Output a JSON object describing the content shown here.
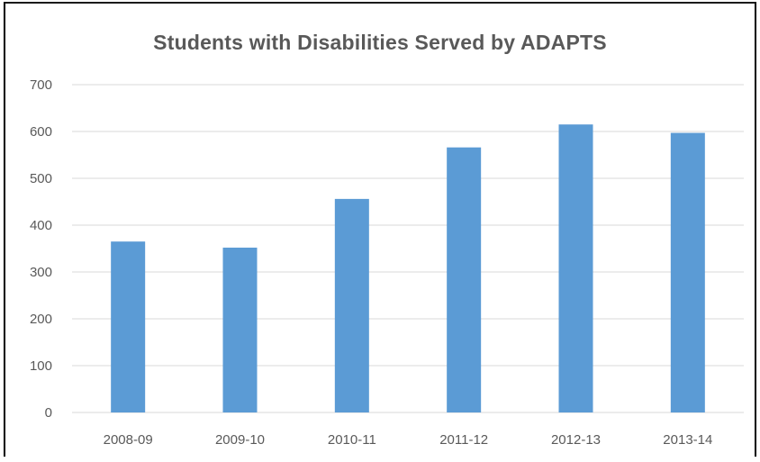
{
  "chart_data": {
    "type": "bar",
    "title": "Students with Disabilities Served by ADAPTS",
    "categories": [
      "2008-09",
      "2009-10",
      "2010-11",
      "2011-12",
      "2012-13",
      "2013-14"
    ],
    "values": [
      365,
      352,
      456,
      566,
      615,
      597
    ],
    "xlabel": "",
    "ylabel": "",
    "ylim": [
      0,
      700
    ],
    "yticks": [
      "0",
      "100",
      "200",
      "300",
      "400",
      "500",
      "600",
      "700"
    ],
    "grid": true,
    "legend": "none",
    "colors": {
      "bar": "#5b9bd5",
      "grid": "#d9d9d9",
      "text": "#595959"
    }
  }
}
